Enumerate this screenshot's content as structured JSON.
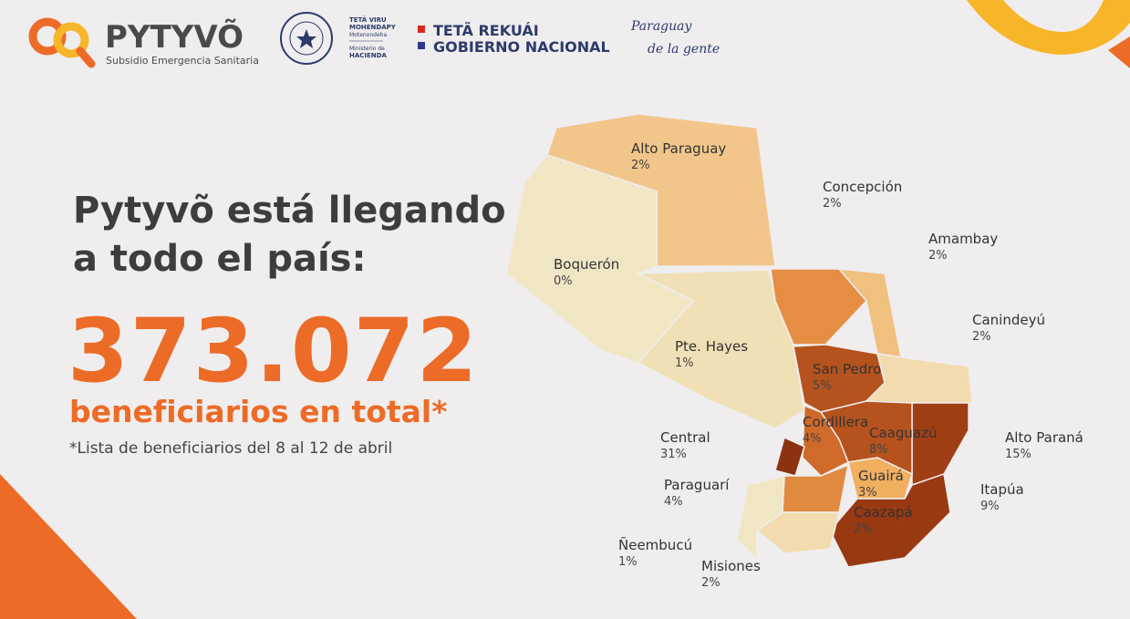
{
  "header": {
    "logo_title": "PYTYVÕ",
    "logo_subtitle": "Subsidio Emergencia Sanitaria",
    "ministry_lines": [
      "TETÃ VIRU",
      "MOHENDAPY",
      "Motenondeha",
      "Ministerio de",
      "HACIENDA"
    ],
    "gov_lines": [
      "TETÃ REKUÁI",
      "GOBIERNO NACIONAL"
    ],
    "slogan_lines": [
      "Paraguay",
      "de la gente"
    ]
  },
  "headline_lines": [
    "Pytyvõ está llegando",
    "a todo el país:"
  ],
  "total": "373.072",
  "total_label": "beneficiarios en total*",
  "footnote": "*Lista de beneficiarios del 8 al 12 de abril",
  "regions": [
    {
      "name": "Alto Paraguay",
      "share": "2%"
    },
    {
      "name": "Concepción",
      "share": "2%"
    },
    {
      "name": "Amambay",
      "share": "2%"
    },
    {
      "name": "Boquerón",
      "share": "0%"
    },
    {
      "name": "Canindeyú",
      "share": "2%"
    },
    {
      "name": "Pte. Hayes",
      "share": "1%"
    },
    {
      "name": "San Pedro",
      "share": "5%"
    },
    {
      "name": "Cordillera",
      "share": "4%"
    },
    {
      "name": "Caaguazú",
      "share": "8%"
    },
    {
      "name": "Central",
      "share": "31%"
    },
    {
      "name": "Alto Paraná",
      "share": "15%"
    },
    {
      "name": "Guairá",
      "share": "3%"
    },
    {
      "name": "Paraguarí",
      "share": "4%"
    },
    {
      "name": "Itapúa",
      "share": "9%"
    },
    {
      "name": "Caazapá",
      "share": "2%"
    },
    {
      "name": "Ñeembucú",
      "share": "1%"
    },
    {
      "name": "Misiones",
      "share": "2%"
    }
  ]
}
